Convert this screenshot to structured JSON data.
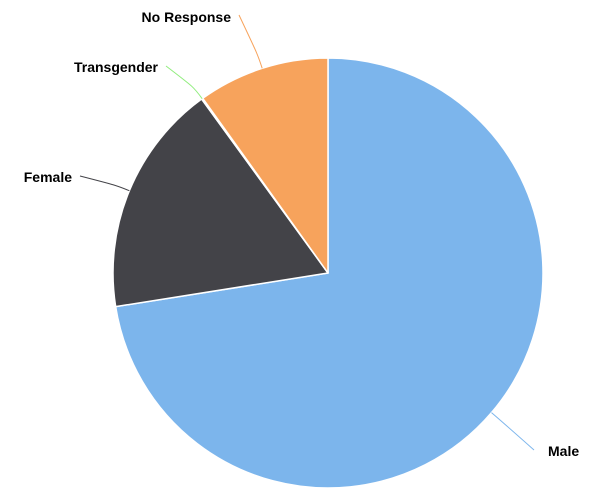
{
  "chart_data": {
    "type": "pie",
    "title": "",
    "slices": [
      {
        "label": "Male",
        "value": 72.5,
        "color": "#7cb5ec"
      },
      {
        "label": "Female",
        "value": 17.5,
        "color": "#434348"
      },
      {
        "label": "Transgender",
        "value": 0.1,
        "color": "#90ed7d"
      },
      {
        "label": "No Response",
        "value": 9.9,
        "color": "#f7a35c"
      }
    ],
    "start_angle_deg": 0,
    "direction": "clockwise"
  }
}
